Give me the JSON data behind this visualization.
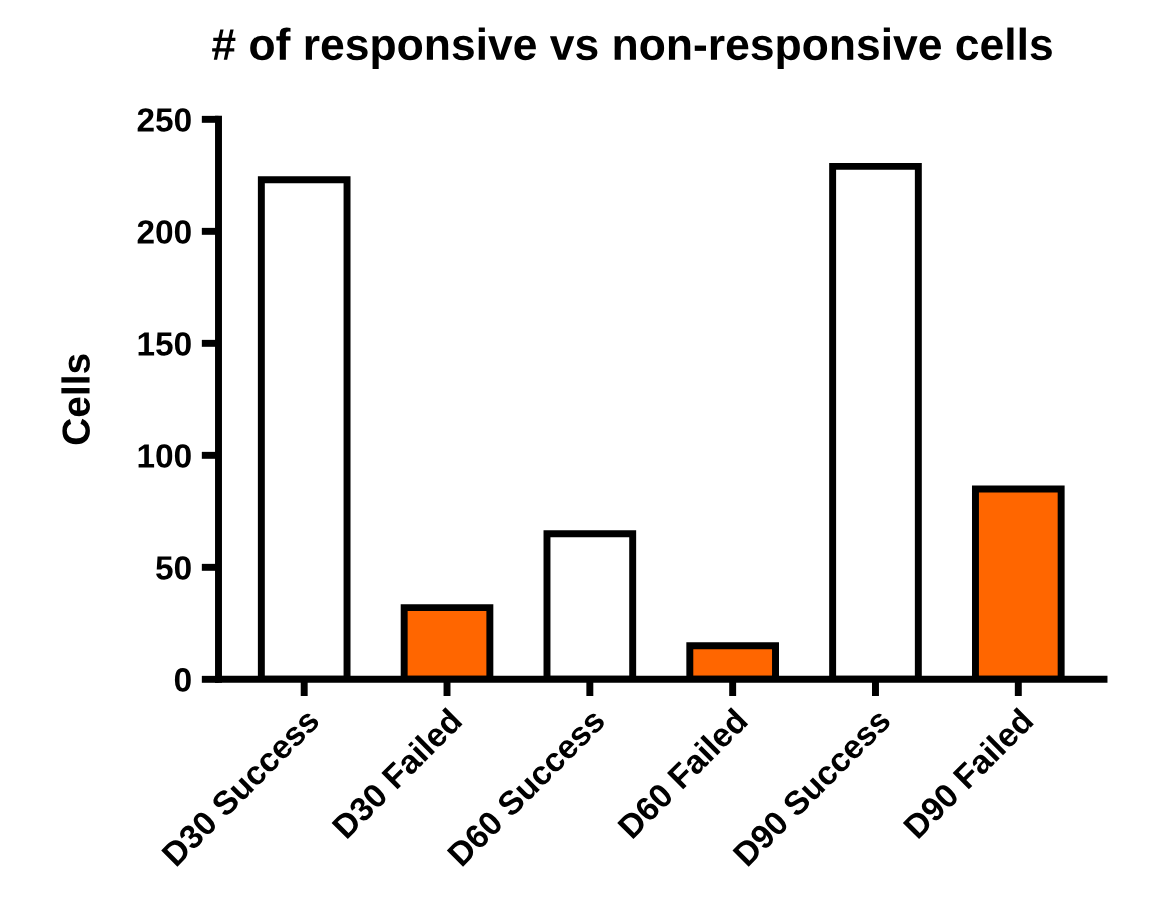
{
  "chart_data": {
    "type": "bar",
    "title": "# of responsive vs non-responsive cells",
    "ylabel": "Cells",
    "categories": [
      "D30 Success",
      "D30 Failed",
      "D60 Success",
      "D60 Failed",
      "D90 Success",
      "D90 Failed"
    ],
    "values": [
      223,
      32,
      65,
      15,
      229,
      85
    ],
    "colors": [
      "#ffffff",
      "#ff6600",
      "#ffffff",
      "#ff6600",
      "#ffffff",
      "#ff6600"
    ],
    "ylim": [
      0,
      250
    ],
    "yticks": [
      0,
      50,
      100,
      150,
      200,
      250
    ],
    "grid": false,
    "legend": false
  }
}
